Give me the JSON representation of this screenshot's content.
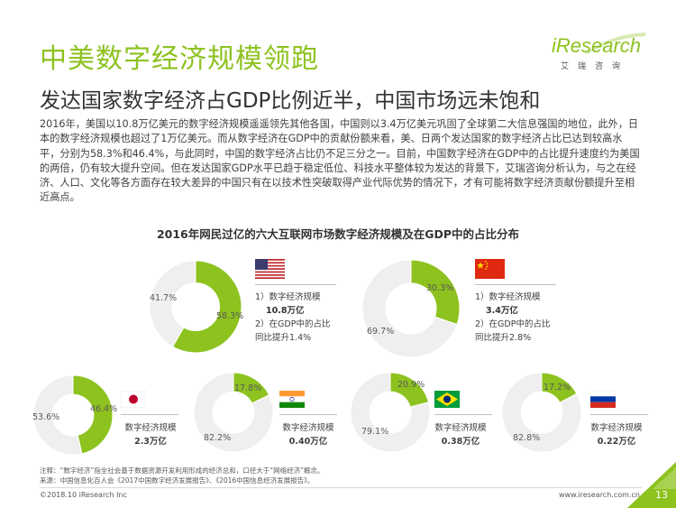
{
  "title": "中美数字经济规模领跑",
  "subtitle": "发达国家数字经济占GDP比例近半，中国市场远未饱和",
  "logo": {
    "word": "iResearch",
    "sub": "艾瑞咨询"
  },
  "paragraph": "2016年，美国以10.8万亿美元的数字经济规模遥遥领先其他各国，中国则以3.4万亿美元巩固了全球第二大信息强国的地位，此外，日本的数字经济规模也超过了1万亿美元。而从数字经济在GDP中的贡献份额来看，美、日两个发达国家的数字经济占比已达到较高水平，分别为58.3%和46.4%，与此同时，中国的数字经济占比仍不足三分之一。目前，中国数字经济在GDP中的占比提升速度约为美国的两倍，仍有较大提升空间。但在发达国家GDP水平已趋于稳定低位、科技水平整体较为发达的背景下，艾瑞咨询分析认为，与之在经济、人口、文化等各方面存在较大差异的中国只有在以技术性突破取得产业代际优势的情况下，才有可能将数字经济贡献份额提升至相近高点。",
  "chart_title": "2016年网民过亿的六大互联网市场数字经济规模及在GDP中的占比分布",
  "colors": {
    "green": "#8dc21f",
    "gray": "#efefef",
    "accent": "#8dc21f"
  },
  "chart_data": {
    "type": "pie",
    "title": "2016年网民过亿的六大互联网市场数字经济规模及在GDP中的占比分布",
    "charts": [
      {
        "country": "us-flag",
        "slices": [
          {
            "label": "58.3%",
            "value": 58.3
          },
          {
            "label": "41.7%",
            "value": 41.7
          }
        ],
        "info": {
          "line1": "1）数字经济规模",
          "line2": "10.8万亿",
          "line3": "2）在GDP中的占比",
          "line4": "同比提升1.4%"
        }
      },
      {
        "country": "china-flag",
        "slices": [
          {
            "label": "30.3%",
            "value": 30.3
          },
          {
            "label": "69.7%",
            "value": 69.7
          }
        ],
        "info": {
          "line1": "1）数字经济规模",
          "line2": "3.4万亿",
          "line3": "2）在GDP中的占比",
          "line4": "同比提升2.8%"
        }
      },
      {
        "country": "japan-flag",
        "slices": [
          {
            "label": "46.4%",
            "value": 46.4
          },
          {
            "label": "53.6%",
            "value": 53.6
          }
        ],
        "info": {
          "line1": "数字经济规模",
          "line2": "2.3万亿"
        }
      },
      {
        "country": "india-flag",
        "slices": [
          {
            "label": "17.8%",
            "value": 17.8
          },
          {
            "label": "82.2%",
            "value": 82.2
          }
        ],
        "info": {
          "line1": "数字经济规模",
          "line2": "0.40万亿"
        }
      },
      {
        "country": "brazil-flag",
        "slices": [
          {
            "label": "20.9%",
            "value": 20.9
          },
          {
            "label": "79.1%",
            "value": 79.1
          }
        ],
        "info": {
          "line1": "数字经济规模",
          "line2": "0.38万亿"
        }
      },
      {
        "country": "russia-flag",
        "slices": [
          {
            "label": "17.2%",
            "value": 17.2
          },
          {
            "label": "82.8%",
            "value": 82.8
          }
        ],
        "info": {
          "line1": "数字经济规模",
          "line2": "0.22万亿"
        }
      }
    ]
  },
  "note": {
    "line1": "注释：“数字经济”指全社会基于数据资源开发利用形成的经济总和，口径大于“网络经济”概念。",
    "line2": "来源：中国信息化百人会《2017中国数字经济发展报告》、《2016中国信息经济发展报告》。"
  },
  "footer": {
    "left": "©2018.10 iResearch Inc",
    "right": "www.iresearch.com.cn",
    "page": "13"
  }
}
